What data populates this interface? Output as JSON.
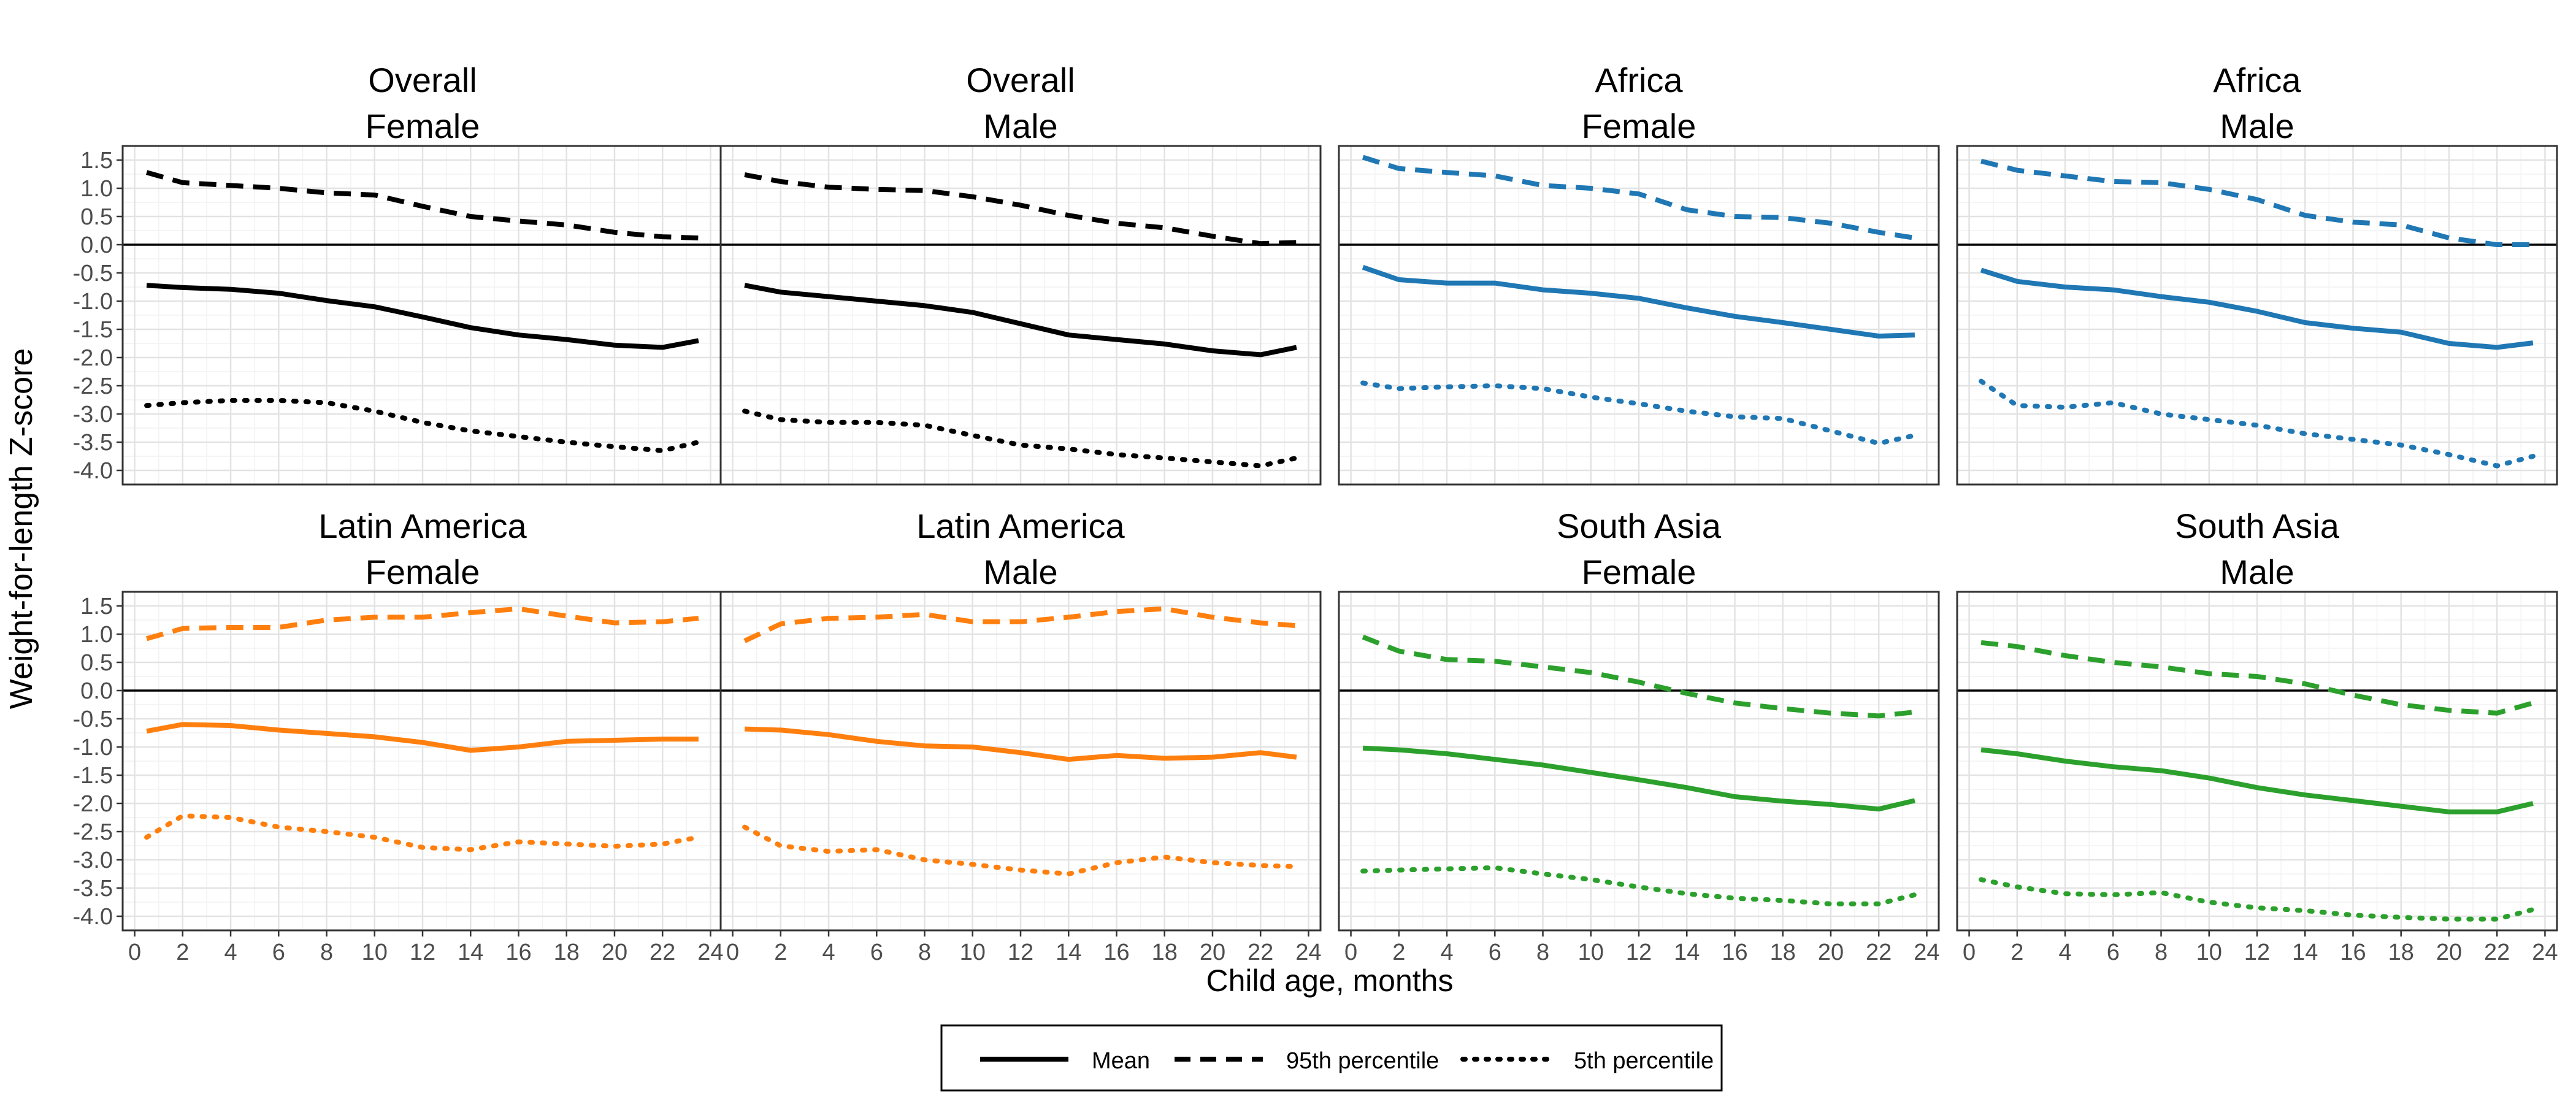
{
  "figure": {
    "ylabel": "Weight-for-length Z-score",
    "xlabel": "Child age, months"
  },
  "legend": {
    "position": "bottom",
    "items": [
      {
        "label": "Mean",
        "style": "solid"
      },
      {
        "label": "95th percentile",
        "style": "dashed"
      },
      {
        "label": "5th percentile",
        "style": "dotted"
      }
    ]
  },
  "colors": {
    "Overall": "#000000",
    "Africa": "#1f77b4",
    "Latin America": "#ff7f0e",
    "South Asia": "#2ca02c"
  },
  "chart_data": {
    "type": "line",
    "layout": "facet grid 2 rows x 4 columns",
    "grid": true,
    "reference_line_y": 0,
    "x_ticks": [
      0,
      2,
      4,
      6,
      8,
      10,
      12,
      14,
      16,
      18,
      20,
      22,
      24
    ],
    "y_ticks": [
      1.5,
      1.0,
      0.5,
      0.0,
      -0.5,
      -1.0,
      -1.5,
      -2.0,
      -2.5,
      -3.0,
      -3.5,
      -4.0
    ],
    "xlim": [
      -0.5,
      24.5
    ],
    "ylim": [
      -4.25,
      1.75
    ],
    "x": [
      0.5,
      2,
      4,
      6,
      8,
      10,
      12,
      14,
      16,
      18,
      20,
      22,
      23.5
    ],
    "panels": [
      {
        "region": "Overall",
        "sex": "Female",
        "mean": [
          -0.72,
          -0.76,
          -0.79,
          -0.86,
          -0.99,
          -1.1,
          -1.28,
          -1.47,
          -1.6,
          -1.68,
          -1.78,
          -1.82,
          -1.7
        ],
        "p95": [
          1.28,
          1.1,
          1.05,
          1.0,
          0.92,
          0.88,
          0.68,
          0.5,
          0.42,
          0.35,
          0.22,
          0.14,
          0.12
        ],
        "p5": [
          -2.85,
          -2.8,
          -2.76,
          -2.76,
          -2.8,
          -2.95,
          -3.15,
          -3.3,
          -3.4,
          -3.5,
          -3.58,
          -3.65,
          -3.5
        ]
      },
      {
        "region": "Overall",
        "sex": "Male",
        "mean": [
          -0.72,
          -0.84,
          -0.92,
          -1.0,
          -1.08,
          -1.2,
          -1.4,
          -1.6,
          -1.68,
          -1.76,
          -1.88,
          -1.95,
          -1.82
        ],
        "p95": [
          1.24,
          1.12,
          1.02,
          0.98,
          0.96,
          0.85,
          0.7,
          0.52,
          0.38,
          0.3,
          0.15,
          0.02,
          0.04
        ],
        "p5": [
          -2.95,
          -3.1,
          -3.15,
          -3.15,
          -3.2,
          -3.38,
          -3.55,
          -3.62,
          -3.72,
          -3.78,
          -3.85,
          -3.92,
          -3.78
        ]
      },
      {
        "region": "Africa",
        "sex": "Female",
        "mean": [
          -0.4,
          -0.62,
          -0.68,
          -0.68,
          -0.8,
          -0.86,
          -0.95,
          -1.12,
          -1.27,
          -1.38,
          -1.5,
          -1.62,
          -1.6
        ],
        "p95": [
          1.55,
          1.35,
          1.28,
          1.22,
          1.05,
          1.0,
          0.9,
          0.62,
          0.5,
          0.48,
          0.38,
          0.22,
          0.12
        ],
        "p5": [
          -2.45,
          -2.55,
          -2.52,
          -2.5,
          -2.55,
          -2.7,
          -2.82,
          -2.95,
          -3.05,
          -3.08,
          -3.3,
          -3.52,
          -3.38
        ]
      },
      {
        "region": "Africa",
        "sex": "Male",
        "mean": [
          -0.45,
          -0.65,
          -0.75,
          -0.8,
          -0.92,
          -1.02,
          -1.18,
          -1.38,
          -1.48,
          -1.55,
          -1.75,
          -1.82,
          -1.74
        ],
        "p95": [
          1.48,
          1.32,
          1.22,
          1.12,
          1.1,
          0.98,
          0.8,
          0.52,
          0.4,
          0.35,
          0.12,
          0.0,
          0.0
        ],
        "p5": [
          -2.42,
          -2.85,
          -2.88,
          -2.8,
          -3.0,
          -3.1,
          -3.2,
          -3.35,
          -3.45,
          -3.55,
          -3.72,
          -3.92,
          -3.75
        ]
      },
      {
        "region": "Latin America",
        "sex": "Female",
        "mean": [
          -0.72,
          -0.6,
          -0.62,
          -0.7,
          -0.76,
          -0.82,
          -0.92,
          -1.06,
          -1.0,
          -0.9,
          -0.88,
          -0.86,
          -0.86
        ],
        "p95": [
          0.92,
          1.1,
          1.12,
          1.12,
          1.25,
          1.3,
          1.3,
          1.38,
          1.45,
          1.32,
          1.2,
          1.22,
          1.28
        ],
        "p5": [
          -2.6,
          -2.22,
          -2.25,
          -2.42,
          -2.5,
          -2.6,
          -2.78,
          -2.82,
          -2.68,
          -2.72,
          -2.76,
          -2.72,
          -2.6
        ]
      },
      {
        "region": "Latin America",
        "sex": "Male",
        "mean": [
          -0.68,
          -0.7,
          -0.78,
          -0.9,
          -0.98,
          -1.0,
          -1.1,
          -1.22,
          -1.15,
          -1.2,
          -1.18,
          -1.1,
          -1.18
        ],
        "p95": [
          0.88,
          1.18,
          1.28,
          1.3,
          1.35,
          1.22,
          1.22,
          1.3,
          1.4,
          1.45,
          1.3,
          1.2,
          1.15
        ],
        "p5": [
          -2.42,
          -2.75,
          -2.85,
          -2.82,
          -3.0,
          -3.08,
          -3.18,
          -3.25,
          -3.05,
          -2.95,
          -3.05,
          -3.1,
          -3.12
        ]
      },
      {
        "region": "South Asia",
        "sex": "Female",
        "mean": [
          -1.02,
          -1.05,
          -1.12,
          -1.22,
          -1.32,
          -1.45,
          -1.58,
          -1.72,
          -1.88,
          -1.96,
          -2.02,
          -2.1,
          -1.95
        ],
        "p95": [
          0.95,
          0.7,
          0.55,
          0.52,
          0.42,
          0.32,
          0.15,
          -0.05,
          -0.22,
          -0.32,
          -0.4,
          -0.45,
          -0.38
        ],
        "p5": [
          -3.2,
          -3.18,
          -3.16,
          -3.14,
          -3.25,
          -3.35,
          -3.48,
          -3.6,
          -3.68,
          -3.72,
          -3.78,
          -3.78,
          -3.62
        ]
      },
      {
        "region": "South Asia",
        "sex": "Male",
        "mean": [
          -1.05,
          -1.12,
          -1.25,
          -1.35,
          -1.42,
          -1.55,
          -1.72,
          -1.85,
          -1.95,
          -2.05,
          -2.15,
          -2.15,
          -2.0
        ],
        "p95": [
          0.85,
          0.78,
          0.62,
          0.5,
          0.42,
          0.3,
          0.25,
          0.12,
          -0.08,
          -0.25,
          -0.35,
          -0.4,
          -0.22
        ],
        "p5": [
          -3.35,
          -3.48,
          -3.6,
          -3.62,
          -3.58,
          -3.75,
          -3.85,
          -3.9,
          -3.98,
          -4.02,
          -4.05,
          -4.05,
          -3.88
        ]
      }
    ]
  }
}
